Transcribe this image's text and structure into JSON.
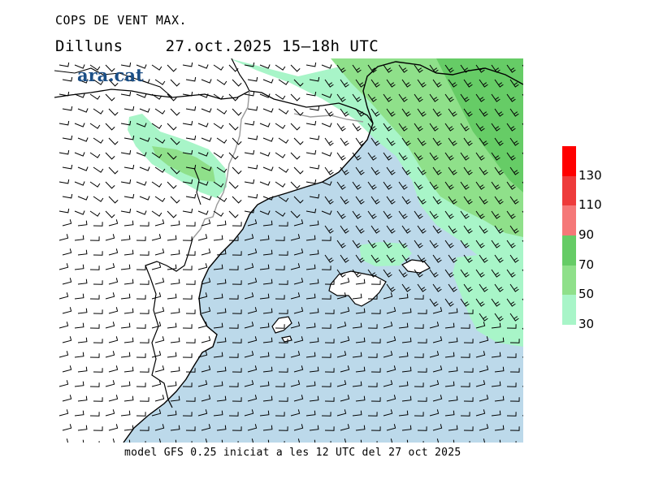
{
  "header": {
    "title": "COPS DE VENT MAX.",
    "day": "Dilluns",
    "datetime": "27.oct.2025 15–18h UTC"
  },
  "logo": {
    "text": "ara.cat"
  },
  "footer": {
    "text": "model GFS 0.25 iniciat a les 12 UTC del 27 oct 2025"
  },
  "legend": {
    "ticks": [
      "30",
      "50",
      "70",
      "90",
      "110",
      "130"
    ],
    "bands": [
      {
        "from": 30,
        "to": 50,
        "color": "#a8f5c8"
      },
      {
        "from": 50,
        "to": 70,
        "color": "#8fe08a"
      },
      {
        "from": 70,
        "to": 90,
        "color": "#66cc66"
      },
      {
        "from": 90,
        "to": 110,
        "color": "#f57878"
      },
      {
        "from": 110,
        "to": 130,
        "color": "#ee3b3b"
      },
      {
        "from": 130,
        "to": 150,
        "color": "#ff0000"
      }
    ]
  },
  "colors": {
    "sea": "#bcd9ea",
    "land": "#ffffff",
    "coast": "#000000",
    "border": "#9a9a9a",
    "barb": "#000000"
  }
}
